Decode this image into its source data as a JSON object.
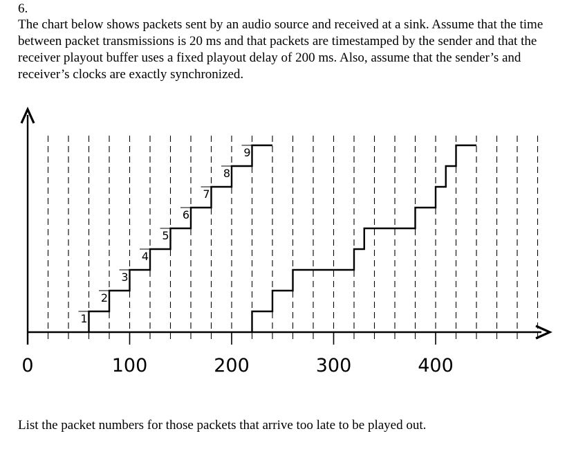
{
  "question": {
    "number": "6.",
    "intro": "The chart below shows packets sent by an audio source and received at a sink. Assume that the time between packet transmissions is 20 ms and that packets are timestamped by the sender and that the receiver playout buffer uses a fixed playout delay of 200 ms. Also, assume that the sender’s and receiver’s clocks are exactly synchronized.",
    "prompt": "List the packet numbers for those packets that arrive too late to be played out."
  },
  "chart_data": {
    "type": "line",
    "title": "",
    "xlabel": "",
    "ylabel": "",
    "xlim": [
      0,
      520
    ],
    "x_ticks": [
      0,
      100,
      200,
      300,
      400
    ],
    "x_tick_labels": [
      "0",
      "100",
      "200",
      "300",
      "400"
    ],
    "grid_spacing": 20,
    "grid": "vertical dashed",
    "ylim": [
      0,
      9
    ],
    "series": [
      {
        "x": [
          60,
          80,
          100,
          120,
          140,
          160,
          180,
          200,
          220
        ],
        "y": [
          1,
          2,
          3,
          4,
          5,
          6,
          7,
          8,
          9
        ],
        "step_end": 240
      },
      {
        "x": [
          220,
          240,
          260,
          320,
          330,
          380,
          400,
          410,
          420
        ],
        "y": [
          1,
          2,
          3,
          4,
          5,
          6,
          7,
          8,
          9
        ],
        "step_end": 440
      }
    ],
    "point_labels": [
      "1",
      "2",
      "3",
      "4",
      "5",
      "6",
      "7",
      "8",
      "9"
    ]
  }
}
